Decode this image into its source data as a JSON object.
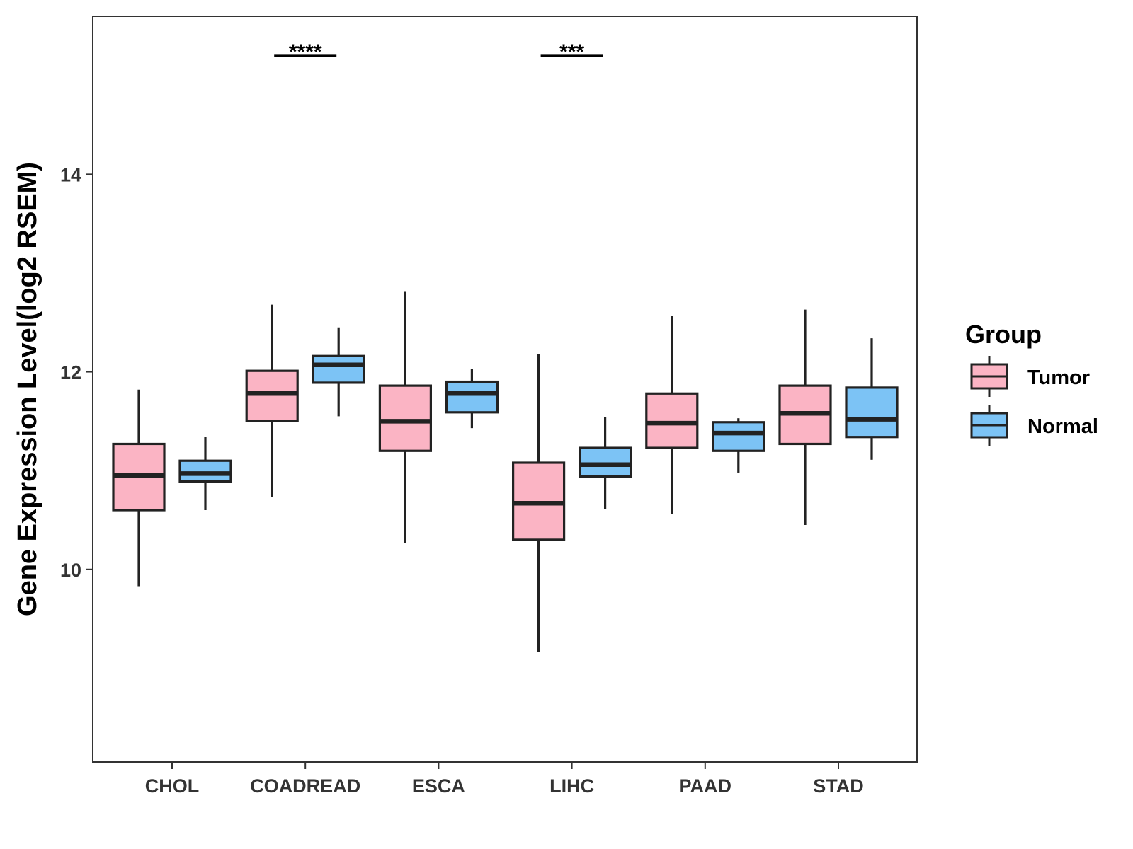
{
  "chart_data": {
    "type": "boxplot",
    "title": "",
    "xlabel": "",
    "ylabel": "Gene Expression Level(log2 RSEM)",
    "ylim": [
      8.05,
      15.6
    ],
    "yticks": [
      10,
      12,
      14
    ],
    "grid": false,
    "categories": [
      "CHOL",
      "COADREAD",
      "ESCA",
      "LIHC",
      "PAAD",
      "STAD"
    ],
    "legend": {
      "title": "Group",
      "position": "right",
      "entries": [
        {
          "name": "Tumor",
          "color": "#FBB4C4"
        },
        {
          "name": "Normal",
          "color": "#7CC3F5"
        }
      ]
    },
    "series": [
      {
        "name": "Tumor",
        "color": "#FBB4C4",
        "boxes": [
          {
            "min": 9.83,
            "q1": 10.6,
            "median": 10.95,
            "q3": 11.27,
            "max": 11.82
          },
          {
            "min": 10.73,
            "q1": 11.5,
            "median": 11.78,
            "q3": 12.01,
            "max": 12.68
          },
          {
            "min": 10.27,
            "q1": 11.2,
            "median": 11.5,
            "q3": 11.86,
            "max": 12.81
          },
          {
            "min": 9.16,
            "q1": 10.3,
            "median": 10.67,
            "q3": 11.08,
            "max": 12.18
          },
          {
            "min": 10.56,
            "q1": 11.23,
            "median": 11.48,
            "q3": 11.78,
            "max": 12.57
          },
          {
            "min": 10.45,
            "q1": 11.27,
            "median": 11.58,
            "q3": 11.86,
            "max": 12.63
          }
        ]
      },
      {
        "name": "Normal",
        "color": "#7CC3F5",
        "boxes": [
          {
            "min": 10.6,
            "q1": 10.89,
            "median": 10.97,
            "q3": 11.1,
            "max": 11.34
          },
          {
            "min": 11.55,
            "q1": 11.89,
            "median": 12.07,
            "q3": 12.16,
            "max": 12.45
          },
          {
            "min": 11.43,
            "q1": 11.59,
            "median": 11.78,
            "q3": 11.9,
            "max": 12.03
          },
          {
            "min": 10.61,
            "q1": 10.94,
            "median": 11.06,
            "q3": 11.23,
            "max": 11.54
          },
          {
            "min": 10.98,
            "q1": 11.2,
            "median": 11.38,
            "q3": 11.49,
            "max": 11.53
          },
          {
            "min": 11.11,
            "q1": 11.34,
            "median": 11.52,
            "q3": 11.84,
            "max": 12.34
          }
        ]
      }
    ],
    "annotations": [
      {
        "category": "COADREAD",
        "text": "****",
        "y": 15.2
      },
      {
        "category": "LIHC",
        "text": "***",
        "y": 15.2
      }
    ]
  },
  "colors": {
    "tumor": "#FBB4C4",
    "normal": "#7CC3F5",
    "stroke": "#222222",
    "axis": "#333333"
  }
}
